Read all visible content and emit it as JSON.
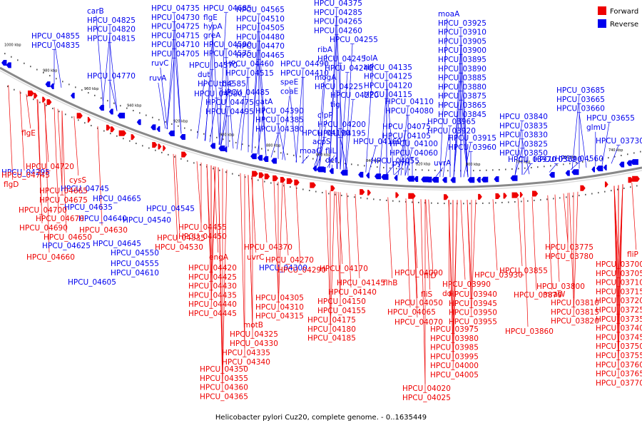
{
  "caption": "Helicobacter pylori Cuz20, complete genome. - 0..1635449",
  "legend": [
    {
      "label": "Forward",
      "color": "#ee0000"
    },
    {
      "label": "Reverse",
      "color": "#0000ee"
    }
  ],
  "colors": {
    "forward": "#ee0000",
    "reverse": "#0000ee",
    "backbone": "#888888"
  },
  "scale_labels": [
    "1000 kbp",
    "980 kbp",
    "960 kbp",
    "940 kbp",
    "920 kbp",
    "900 kbp",
    "880 kbp",
    "860 kbp",
    "840 kbp",
    "820 kbp",
    "800 kbp",
    "780 kbp",
    "760 kbp",
    "740 kbp"
  ],
  "reverse_genes": [
    "carB",
    "HPCU_04825",
    "HPCU_04820",
    "HPCU_04815",
    "HPCU_04855",
    "HPCU_04835",
    "HPCU_04770",
    "HPCU_04735",
    "HPCU_04730",
    "HPCU_04725",
    "HPCU_04715",
    "HPCU_04710",
    "HPCU_04705",
    "ruvC",
    "ruvA",
    "HPCU_04685",
    "flgE",
    "hypA",
    "greA",
    "HPCU_04590",
    "HPCU_04575",
    "HPCU_04570",
    "dut",
    "HPCU_04585",
    "HPCU_04580",
    "HPCU_04565",
    "HPCU_04510",
    "HPCU_04505",
    "HPCU_04480",
    "HPCU_04470",
    "HPCU_04465",
    "HPCU_04460",
    "HPCU_04515",
    "thiE",
    "HPCU_04485",
    "HPCU_04475",
    "HPCU_04495",
    "HPCU_04490",
    "HPCU_04410",
    "speE",
    "coaE",
    "gatA",
    "HPCU_04390",
    "HPCU_04385",
    "HPCU_04380",
    "HPCU_04375",
    "HPCU_04285",
    "HPCU_04265",
    "HPCU_04260",
    "HPCU_04255",
    "ribA",
    "HPCU_04245",
    "HPCU_04240",
    "mogA",
    "HPCU_04225",
    "HPCU_04220",
    "tig",
    "clpP",
    "HPCU_04200",
    "HPCU_04195",
    "HPCU_04190",
    "acpS",
    "moaC",
    "fliL",
    "def",
    "HPCU_04160",
    "lolA",
    "HPCU_04135",
    "HPCU_04125",
    "HPCU_04120",
    "HPCU_04115",
    "HPCU_04110",
    "HPCU_04080",
    "HPCU_04075",
    "HPCU_04105",
    "HPCU_04100",
    "HPCU_04060",
    "HPCU_04055",
    "pyrH",
    "moaA",
    "HPCU_03925",
    "HPCU_03910",
    "HPCU_03905",
    "HPCU_03900",
    "HPCU_03895",
    "HPCU_03890",
    "HPCU_03885",
    "HPCU_03880",
    "HPCU_03875",
    "HPCU_03865",
    "HPCU_03845",
    "HPCU_03840",
    "HPCU_03835",
    "HPCU_03830",
    "HPCU_03825",
    "HPCU_03850",
    "HPCU_03970",
    "HPCU_03965",
    "HPCU_03920",
    "HPCU_03915",
    "HPCU_03960",
    "uvrA",
    "HPCU_03690",
    "HPCU_03685",
    "HPCU_03665",
    "HPCU_03660",
    "HPCU_03655",
    "glmU",
    "HPCU_03730",
    "HPCU_04560",
    "HPCU_04545",
    "HPCU_04540",
    "HPCU_04550",
    "HPCU_04555",
    "HPCU_04610",
    "HPCU_04605",
    "HPCU_04645",
    "HPCU_04625",
    "HPCU_04640",
    "HPCU_04635",
    "HPCU_04665",
    "HPCU_04745",
    "HPCU_04295",
    "HPCU_04300"
  ],
  "forward_genes": [
    "flgE",
    "HPCU_04720",
    "HPCU_04745",
    "flgD",
    "cysS",
    "HPCU_04665",
    "HPCU_04675",
    "HPCU_04700",
    "HPCU_04670",
    "HPCU_04690",
    "HPCU_04650",
    "HPCU_04660",
    "HPCU_04630",
    "HPCU_04535",
    "HPCU_04530",
    "HPCU_04455",
    "HPCU_04450",
    "engA",
    "HPCU_04420",
    "HPCU_04425",
    "HPCU_04430",
    "HPCU_04435",
    "HPCU_04440",
    "HPCU_04445",
    "HPCU_04370",
    "uvrC",
    "HPCU_04270",
    "HPCU_04290",
    "HPCU_04305",
    "HPCU_04310",
    "HPCU_04315",
    "motB",
    "HPCU_04325",
    "HPCU_04330",
    "HPCU_04335",
    "HPCU_04340",
    "HPCU_04350",
    "HPCU_04355",
    "HPCU_04360",
    "HPCU_04365",
    "HPCU_04170",
    "HPCU_04145",
    "HPCU_04140",
    "HPCU_04150",
    "HPCU_04155",
    "HPCU_04175",
    "HPCU_04180",
    "HPCU_04185",
    "HPCU_04090",
    "flhB",
    "HPCU_04050",
    "HPCU_04065",
    "HPCU_04070",
    "fliD",
    "fliS",
    "HPCU_03990",
    "ddl",
    "HPCU_03940",
    "HPCU_03945",
    "HPCU_03950",
    "HPCU_03955",
    "HPCU_03975",
    "HPCU_03980",
    "HPCU_03985",
    "HPCU_03995",
    "HPCU_04000",
    "HPCU_04005",
    "HPCU_04020",
    "HPCU_04025",
    "HPCU_03930",
    "HPCU_03855",
    "HPCU_03870",
    "HPCU_03860",
    "HPCU_03775",
    "HPCU_03780",
    "HPCU_03800",
    "mraW",
    "HPCU_03810",
    "HPCU_03815",
    "HPCU_03820",
    "fliP",
    "HPCU_03700",
    "HPCU_03705",
    "HPCU_03710",
    "HPCU_03715",
    "HPCU_03720",
    "HPCU_03725",
    "HPCU_03735",
    "HPCU_03740",
    "HPCU_03745",
    "HPCU_03750",
    "HPCU_03755",
    "HPCU_03760",
    "HPCU_03765",
    "HPCU_03770"
  ]
}
